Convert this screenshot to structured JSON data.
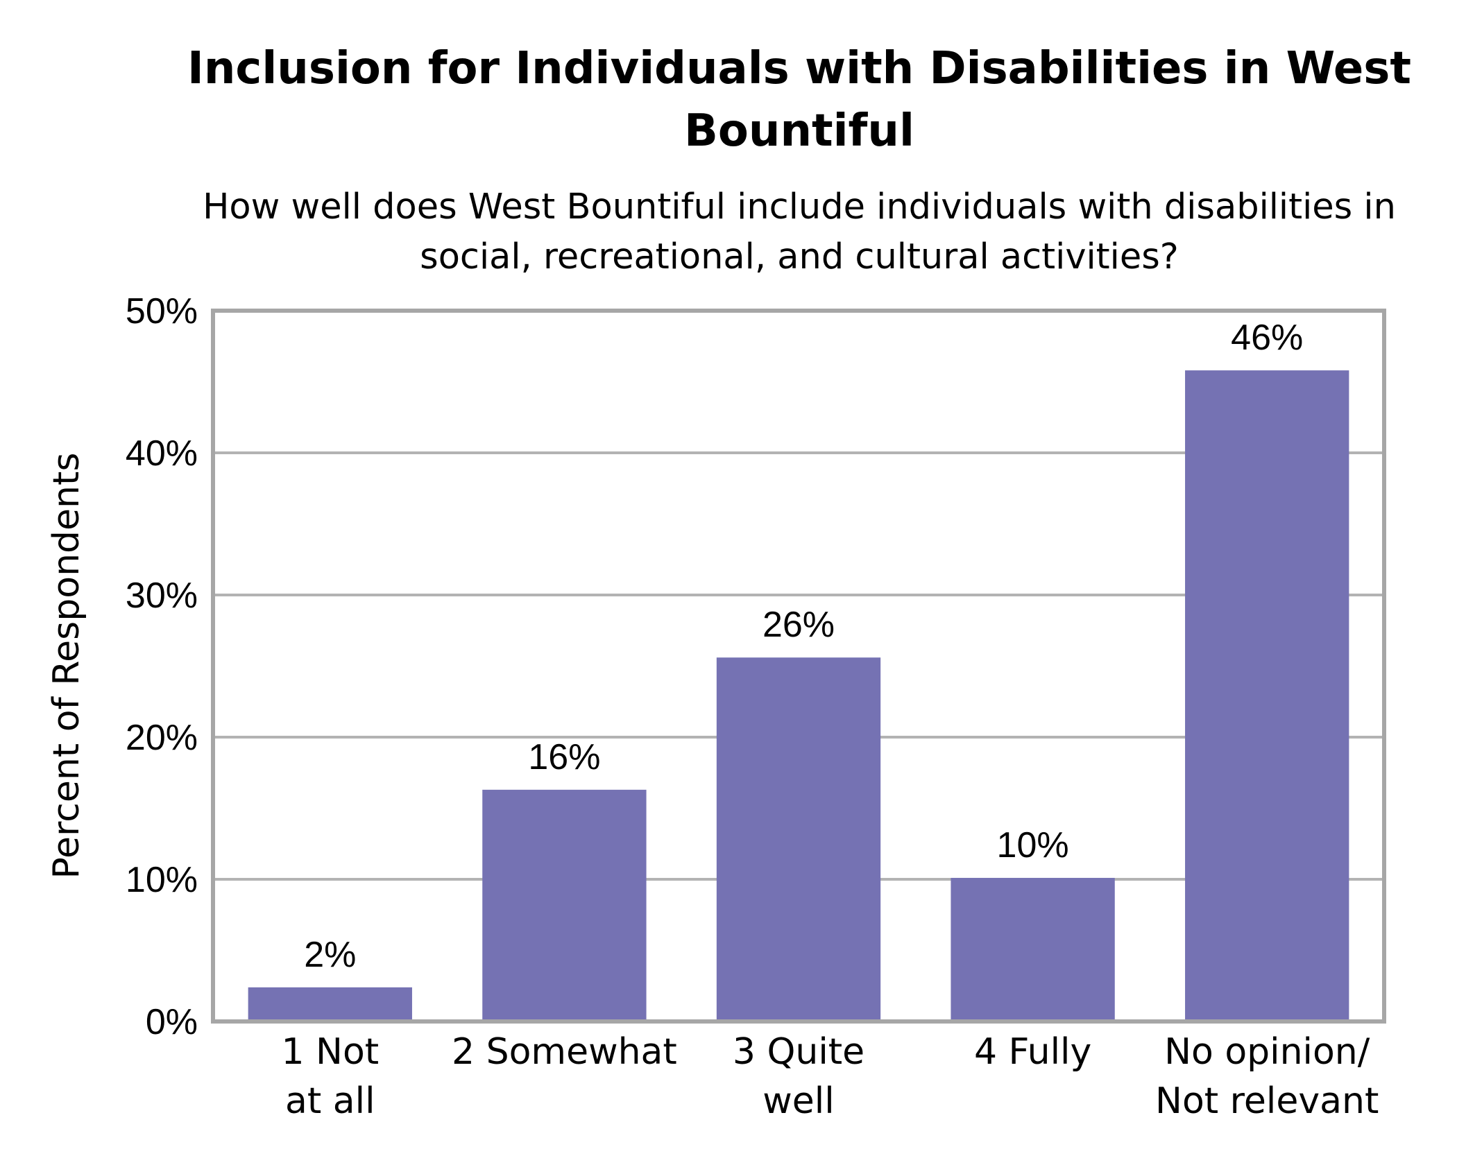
{
  "chart_data": {
    "type": "bar",
    "title_lines": [
      "Inclusion for Individuals with Disabilities in West",
      "Bountiful"
    ],
    "subtitle_lines": [
      "How well does West Bountiful include individuals with disabilities in",
      "social, recreational, and cultural activities?"
    ],
    "ylabel": "Percent of Respondents",
    "xlabel": "",
    "ylim": [
      0,
      50
    ],
    "yticks": [
      "0%",
      "10%",
      "20%",
      "30%",
      "40%",
      "50%"
    ],
    "categories": [
      [
        "1 Not",
        "at all"
      ],
      [
        "2 Somewhat"
      ],
      [
        "3 Quite",
        "well"
      ],
      [
        "4 Fully"
      ],
      [
        "No opinion/",
        "Not relevant"
      ]
    ],
    "values": [
      2.4,
      16.3,
      25.6,
      10.1,
      45.8
    ],
    "data_labels": [
      "2%",
      "16%",
      "26%",
      "10%",
      "46%"
    ],
    "bar_color": "#7572b3",
    "grid": true,
    "legend": "none"
  }
}
